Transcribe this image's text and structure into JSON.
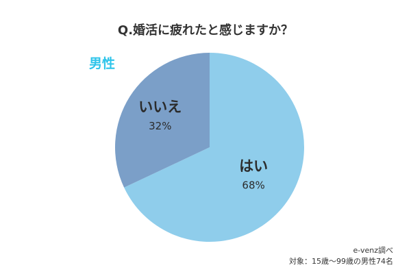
{
  "title": "Q.婚活に疲れたと感じますか？",
  "group_label": "男性",
  "colors": {
    "group_label": "#2ec4ea",
    "background": "#ffffff"
  },
  "chart_data": {
    "type": "pie",
    "title": "Q.婚活に疲れたと感じますか？",
    "slices": [
      {
        "label": "はい",
        "value": 68,
        "value_label": "68%",
        "color": "#8fcdeb"
      },
      {
        "label": "いいえ",
        "value": 32,
        "value_label": "32%",
        "color": "#7b9fc8"
      }
    ]
  },
  "source": {
    "line1": "e-venz調べ",
    "line2": "対象：15歳〜99歳の男性74名"
  }
}
